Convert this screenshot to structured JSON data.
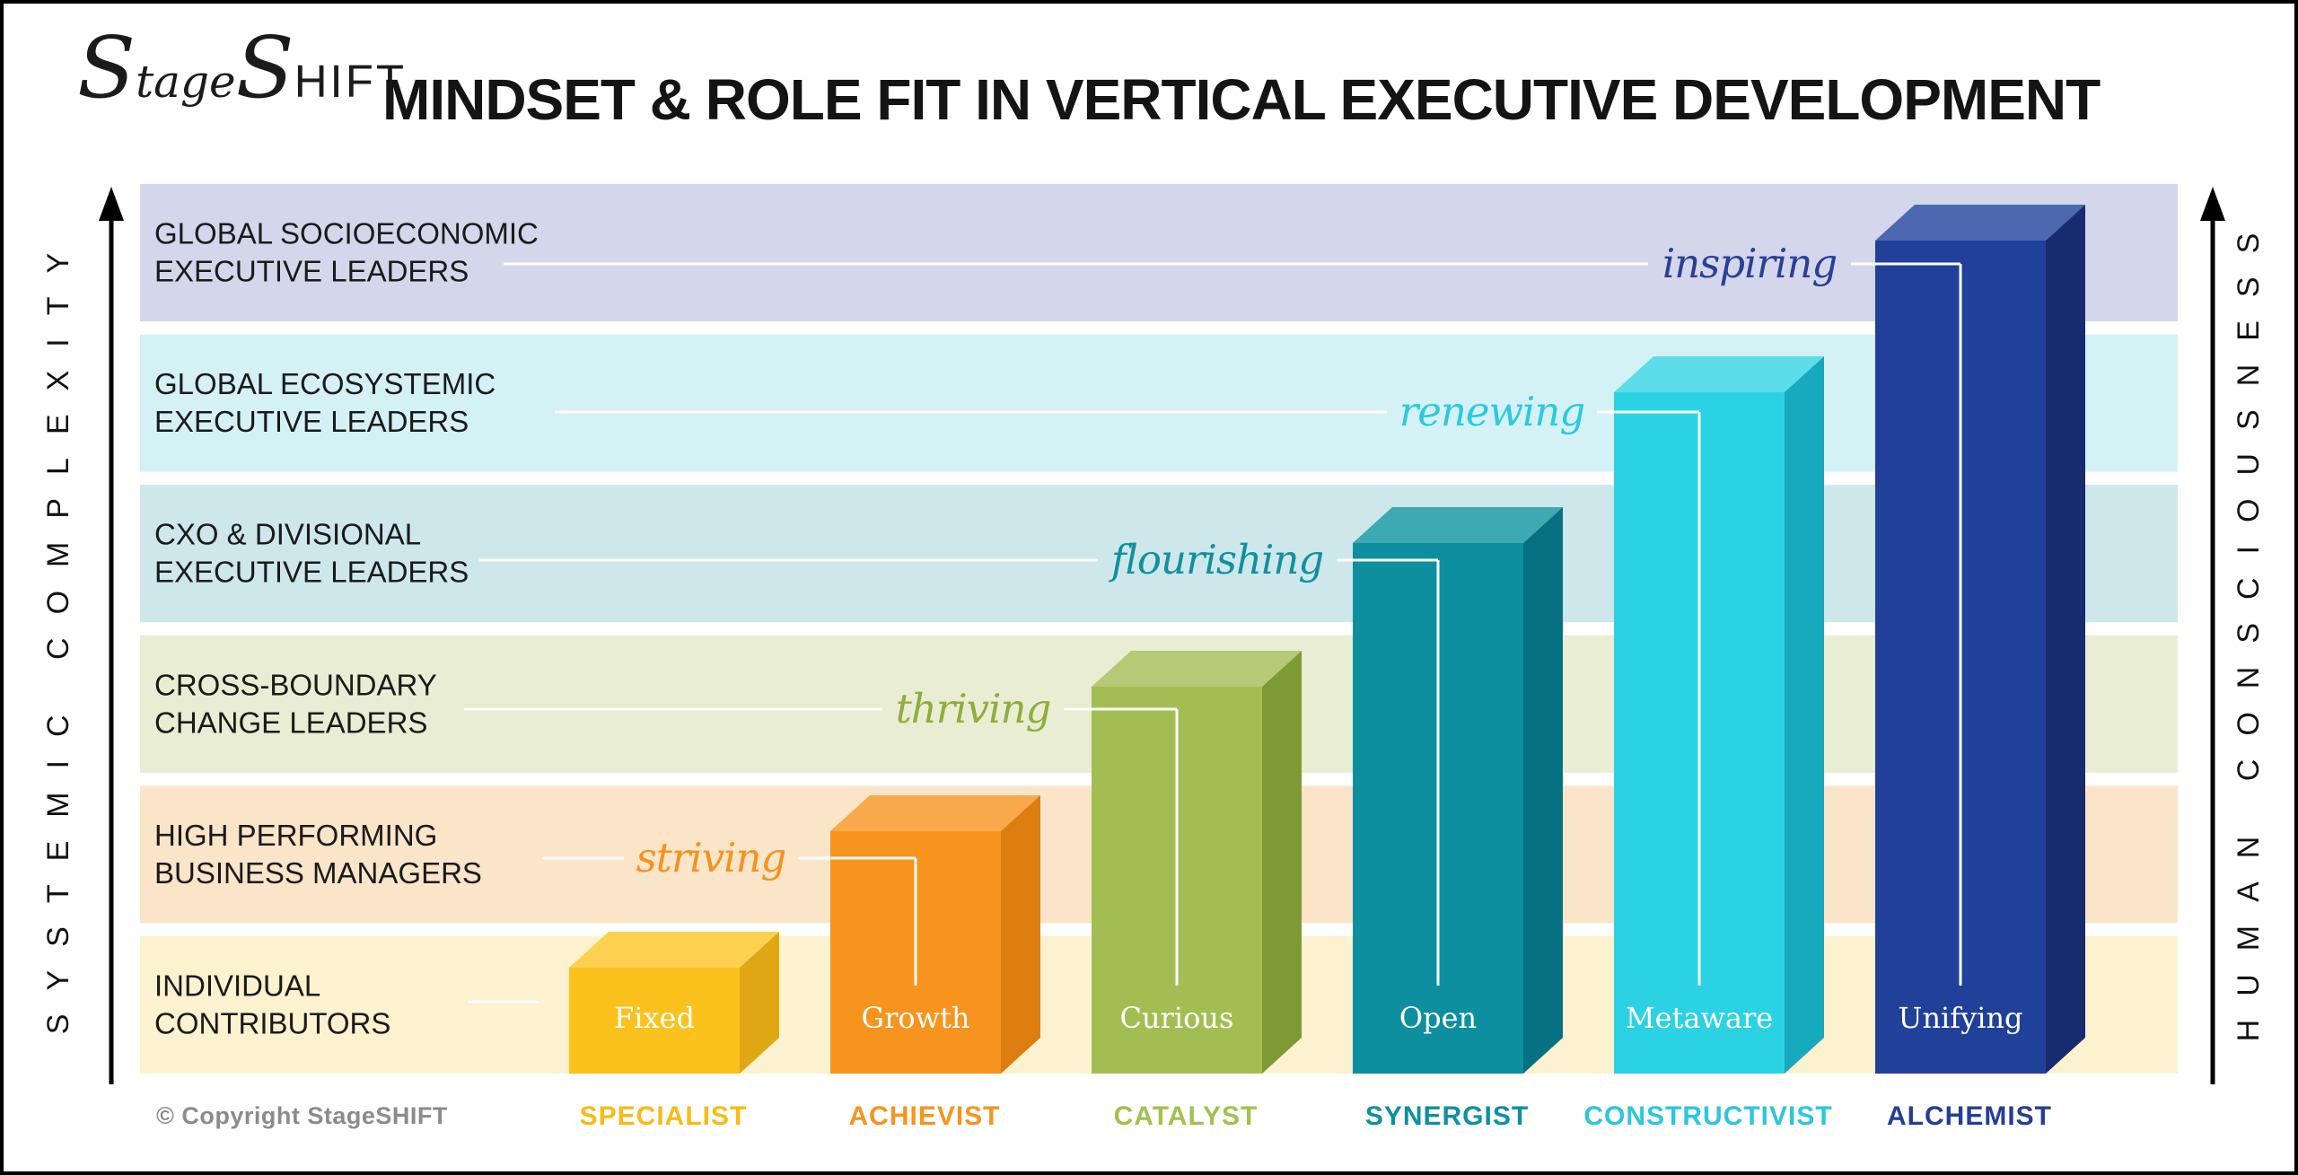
{
  "header": {
    "logo": {
      "s1": "S",
      "rest1": "tage",
      "s2": "S",
      "rest2": "HIFT"
    },
    "title": "MINDSET & ROLE FIT IN VERTICAL EXECUTIVE DEVELOPMENT"
  },
  "axes": {
    "left_label": "SYSTEMIC COMPLEXITY",
    "right_label": "HUMAN CONSCIOUSNESS"
  },
  "footer": {
    "copyright": "© Copyright StageSHIFT"
  },
  "chart_data": {
    "type": "bar",
    "style": "3d-columns-on-role-bands",
    "title": "MINDSET & ROLE FIT IN VERTICAL EXECUTIVE DEVELOPMENT",
    "y_axis_left": "SYSTEMIC COMPLEXITY",
    "y_axis_right": "HUMAN CONSCIOUSNESS",
    "legend_position": "none",
    "grid": "off",
    "role_levels": [
      {
        "label_line1": "GLOBAL SOCIOECONOMIC",
        "label_line2": "EXECUTIVE LEADERS",
        "band_color": "#D4D7EB",
        "rank": 6
      },
      {
        "label_line1": "GLOBAL ECOSYSTEMIC",
        "label_line2": "EXECUTIVE LEADERS",
        "band_color": "#D4F1F6",
        "rank": 5
      },
      {
        "label_line1": "CXO & DIVISIONAL",
        "label_line2": "EXECUTIVE LEADERS",
        "band_color": "#CEE7EB",
        "rank": 4
      },
      {
        "label_line1": "CROSS-BOUNDARY",
        "label_line2": "CHANGE LEADERS",
        "band_color": "#E9EDD3",
        "rank": 3
      },
      {
        "label_line1": "HIGH PERFORMING",
        "label_line2": "BUSINESS MANAGERS",
        "band_color": "#FBE5C8",
        "rank": 2
      },
      {
        "label_line1": "INDIVIDUAL",
        "label_line2": "CONTRIBUTORS",
        "band_color": "#FDF2CF",
        "rank": 1
      }
    ],
    "stages": [
      {
        "stage": "SPECIALIST",
        "mindset": "Fixed",
        "journey_word": null,
        "role_fit_level": 1,
        "color_front": "#FBC21E",
        "color_top": "#FCD150",
        "color_side": "#DFA713",
        "label_color": "#F8BB17",
        "word_color": null
      },
      {
        "stage": "ACHIEVIST",
        "mindset": "Growth",
        "journey_word": "striving",
        "role_fit_level": 2,
        "color_front": "#F7941E",
        "color_top": "#F9A94B",
        "color_side": "#DD7D0F",
        "label_color": "#F7941E",
        "word_color": "#F6921E"
      },
      {
        "stage": "CATALYST",
        "mindset": "Curious",
        "journey_word": "thriving",
        "role_fit_level": 3,
        "color_front": "#A2BE52",
        "color_top": "#B6C977",
        "color_side": "#7E9A35",
        "label_color": "#A2C14F",
        "word_color": "#8FAE3B"
      },
      {
        "stage": "SYNERGIST",
        "mindset": "Open",
        "journey_word": "flourishing",
        "role_fit_level": 4,
        "color_front": "#0E8F9F",
        "color_top": "#3DA9B2",
        "color_side": "#077082",
        "label_color": "#0E90A0",
        "word_color": "#11909F"
      },
      {
        "stage": "CONSTRUCTIVIST",
        "mindset": "Metaware",
        "journey_word": "renewing",
        "role_fit_level": 5,
        "color_front": "#2BD2E4",
        "color_top": "#5CDDEA",
        "color_side": "#17A9BE",
        "label_color": "#2BC6DF",
        "word_color": "#2BC9E1"
      },
      {
        "stage": "ALCHEMIST",
        "mindset": "Unifying",
        "journey_word": "inspiring",
        "role_fit_level": 6,
        "color_front": "#21409A",
        "color_top": "#4C68B0",
        "color_side": "#192B6F",
        "label_color": "#233E94",
        "word_color": "#2A3F96"
      }
    ]
  }
}
